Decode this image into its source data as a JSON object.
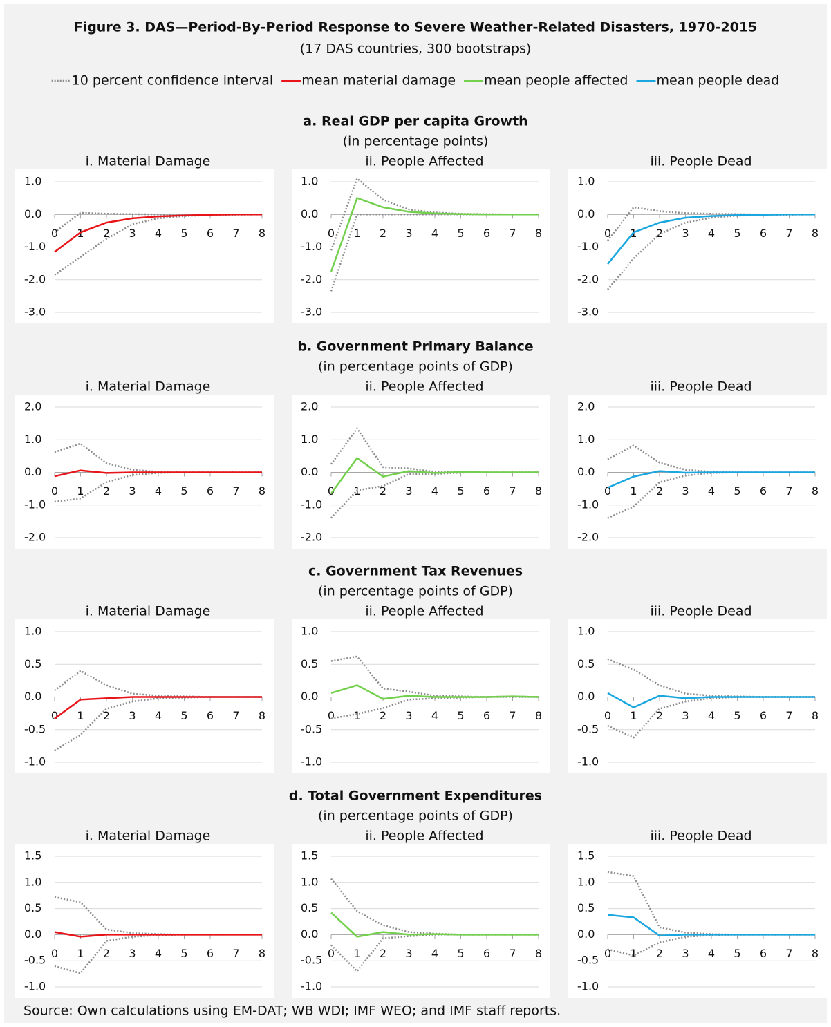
{
  "title": "Figure 3. DAS—Period-By-Period Response to Severe Weather-Related Disasters, 1970-2015",
  "subtitle": "(17 DAS countries, 300 bootstraps)",
  "legend": [
    {
      "label": "10 percent confidence interval",
      "color": "#8c8c8c",
      "dash": true
    },
    {
      "label": "mean material damage",
      "color": "#e8141a"
    },
    {
      "label": "mean people affected",
      "color": "#72d04c"
    },
    {
      "label": "mean people dead",
      "color": "#1aa7e0"
    }
  ],
  "sections": [
    {
      "title": "a. Real GDP per capita Growth",
      "subtitle": "(in percentage points)"
    },
    {
      "title": "b. Government Primary Balance",
      "subtitle": "(in percentage points of GDP)"
    },
    {
      "title": "c. Government Tax Revenues",
      "subtitle": "(in percentage points of GDP)"
    },
    {
      "title": "d. Total Government Expenditures",
      "subtitle": "(in percentage points of GDP)"
    }
  ],
  "source": "Source: Own calculations using EM-DAT; WB WDI; IMF WEO; and IMF staff reports.",
  "chart_data": [
    {
      "type": "line",
      "title": "i. Material Damage",
      "x": [
        0,
        1,
        2,
        3,
        4,
        5,
        6,
        7,
        8
      ],
      "color": "#e8141a",
      "ylim": [
        -3,
        1
      ],
      "yticks": [
        {
          "value": -3,
          "label": "-3.0"
        },
        {
          "value": -2,
          "label": "-2.0"
        },
        {
          "value": -1,
          "label": "-1.0"
        },
        {
          "value": 0,
          "label": "0.0"
        },
        {
          "value": 1,
          "label": "1.0"
        }
      ],
      "values": [
        -1.15,
        -0.55,
        -0.25,
        -0.12,
        -0.06,
        -0.03,
        -0.01,
        0,
        0
      ],
      "upper": [
        -0.55,
        0.05,
        0.02,
        0.01,
        0,
        0,
        0,
        0,
        0
      ],
      "lower": [
        -1.85,
        -1.3,
        -0.75,
        -0.3,
        -0.12,
        -0.05,
        -0.02,
        -0.01,
        0
      ]
    },
    {
      "type": "line",
      "title": "ii. People Affected",
      "x": [
        0,
        1,
        2,
        3,
        4,
        5,
        6,
        7,
        8
      ],
      "color": "#72d04c",
      "ylim": [
        -3,
        1
      ],
      "yticks": [
        {
          "value": -3,
          "label": "-3.0"
        },
        {
          "value": -2,
          "label": "-2.0"
        },
        {
          "value": -1,
          "label": "-1.0"
        },
        {
          "value": 0,
          "label": "0.0"
        },
        {
          "value": 1,
          "label": "1.0"
        }
      ],
      "values": [
        -1.75,
        0.5,
        0.22,
        0.08,
        0.03,
        0.01,
        0,
        0,
        0
      ],
      "upper": [
        -1.1,
        1.1,
        0.45,
        0.15,
        0.06,
        0.02,
        0.01,
        0,
        0
      ],
      "lower": [
        -2.35,
        0,
        0,
        0,
        0,
        0,
        0,
        0,
        0
      ]
    },
    {
      "type": "line",
      "title": "iii. People Dead",
      "x": [
        0,
        1,
        2,
        3,
        4,
        5,
        6,
        7,
        8
      ],
      "color": "#1aa7e0",
      "ylim": [
        -3,
        1
      ],
      "yticks": [
        {
          "value": -3,
          "label": "-3.0"
        },
        {
          "value": -2,
          "label": "-2.0"
        },
        {
          "value": -1,
          "label": "-1.0"
        },
        {
          "value": 0,
          "label": "0.0"
        },
        {
          "value": 1,
          "label": "1.0"
        }
      ],
      "values": [
        -1.52,
        -0.55,
        -0.25,
        -0.1,
        -0.05,
        -0.02,
        -0.01,
        0,
        0
      ],
      "upper": [
        -0.8,
        0.22,
        0.1,
        0.04,
        0.02,
        0.01,
        0,
        0,
        0
      ],
      "lower": [
        -2.3,
        -1.35,
        -0.6,
        -0.25,
        -0.1,
        -0.04,
        -0.02,
        -0.01,
        0
      ]
    },
    {
      "type": "line",
      "title": "i. Material Damage",
      "x": [
        0,
        1,
        2,
        3,
        4,
        5,
        6,
        7,
        8
      ],
      "color": "#e8141a",
      "ylim": [
        -2,
        2
      ],
      "yticks": [
        {
          "value": -2,
          "label": "-2.0"
        },
        {
          "value": -1,
          "label": "-1.0"
        },
        {
          "value": 0,
          "label": "0.0"
        },
        {
          "value": 1,
          "label": "1.0"
        },
        {
          "value": 2,
          "label": "2.0"
        }
      ],
      "values": [
        -0.12,
        0.06,
        -0.02,
        0,
        0,
        0,
        0,
        0,
        0
      ],
      "upper": [
        0.62,
        0.88,
        0.28,
        0.08,
        0.02,
        0,
        0,
        0,
        0
      ],
      "lower": [
        -0.9,
        -0.8,
        -0.3,
        -0.08,
        -0.02,
        0,
        0,
        0,
        0
      ]
    },
    {
      "type": "line",
      "title": "ii. People Affected",
      "x": [
        0,
        1,
        2,
        3,
        4,
        5,
        6,
        7,
        8
      ],
      "color": "#72d04c",
      "ylim": [
        -2,
        2
      ],
      "yticks": [
        {
          "value": -2,
          "label": "-2.0"
        },
        {
          "value": -1,
          "label": "-1.0"
        },
        {
          "value": 0,
          "label": "0.0"
        },
        {
          "value": 1,
          "label": "1.0"
        },
        {
          "value": 2,
          "label": "2.0"
        }
      ],
      "values": [
        -0.65,
        0.44,
        -0.13,
        0.04,
        -0.02,
        0.01,
        0,
        0,
        0
      ],
      "upper": [
        0.25,
        1.35,
        0.16,
        0.12,
        0.02,
        0.02,
        0,
        0,
        0
      ],
      "lower": [
        -1.4,
        -0.55,
        -0.42,
        -0.05,
        -0.05,
        -0.01,
        0,
        0,
        0
      ]
    },
    {
      "type": "line",
      "title": "iii. People Dead",
      "x": [
        0,
        1,
        2,
        3,
        4,
        5,
        6,
        7,
        8
      ],
      "color": "#1aa7e0",
      "ylim": [
        -2,
        2
      ],
      "yticks": [
        {
          "value": -2,
          "label": "-2.0"
        },
        {
          "value": -1,
          "label": "-1.0"
        },
        {
          "value": 0,
          "label": "0.0"
        },
        {
          "value": 1,
          "label": "1.0"
        },
        {
          "value": 2,
          "label": "2.0"
        }
      ],
      "values": [
        -0.47,
        -0.13,
        0.04,
        -0.01,
        0,
        0,
        0,
        0,
        0
      ],
      "upper": [
        0.4,
        0.82,
        0.3,
        0.08,
        0.02,
        0,
        0,
        0,
        0
      ],
      "lower": [
        -1.4,
        -1.05,
        -0.3,
        -0.1,
        -0.02,
        0,
        0,
        0,
        0
      ]
    },
    {
      "type": "line",
      "title": "i. Material Damage",
      "x": [
        0,
        1,
        2,
        3,
        4,
        5,
        6,
        7,
        8
      ],
      "color": "#e8141a",
      "ylim": [
        -1,
        1
      ],
      "yticks": [
        {
          "value": -1,
          "label": "-1.0"
        },
        -0.5,
        {
          "value": 0,
          "label": "0.0"
        },
        0.5,
        {
          "value": 1,
          "label": "1.0"
        }
      ],
      "values": [
        -0.33,
        -0.04,
        -0.02,
        0,
        0,
        0,
        0,
        0,
        0
      ],
      "upper": [
        0.1,
        0.4,
        0.18,
        0.05,
        0.02,
        0.01,
        0,
        0,
        0
      ],
      "lower": [
        -0.82,
        -0.58,
        -0.18,
        -0.07,
        -0.02,
        -0.01,
        0,
        0,
        0
      ]
    },
    {
      "type": "line",
      "title": "ii. People Affected",
      "x": [
        0,
        1,
        2,
        3,
        4,
        5,
        6,
        7,
        8
      ],
      "color": "#72d04c",
      "ylim": [
        -1,
        1
      ],
      "yticks": [
        {
          "value": -1,
          "label": "-1.0"
        },
        -0.5,
        {
          "value": 0,
          "label": "0.0"
        },
        0.5,
        {
          "value": 1,
          "label": "1.0"
        }
      ],
      "values": [
        0.06,
        0.18,
        -0.03,
        0.02,
        0,
        0,
        0,
        0.01,
        0
      ],
      "upper": [
        0.55,
        0.62,
        0.13,
        0.08,
        0.02,
        0.01,
        0,
        0.01,
        0
      ],
      "lower": [
        -0.33,
        -0.26,
        -0.17,
        -0.04,
        -0.02,
        -0.01,
        0,
        0,
        0
      ]
    },
    {
      "type": "line",
      "title": "iii. People Dead",
      "x": [
        0,
        1,
        2,
        3,
        4,
        5,
        6,
        7,
        8
      ],
      "color": "#1aa7e0",
      "ylim": [
        -1,
        1
      ],
      "yticks": [
        {
          "value": -1,
          "label": "-1.0"
        },
        -0.5,
        {
          "value": 0,
          "label": "0.0"
        },
        0.5,
        {
          "value": 1,
          "label": "1.0"
        }
      ],
      "values": [
        0.06,
        -0.16,
        0.02,
        -0.02,
        0,
        0,
        0,
        0,
        0
      ],
      "upper": [
        0.58,
        0.42,
        0.18,
        0.05,
        0.02,
        0.01,
        0,
        0,
        0
      ],
      "lower": [
        -0.44,
        -0.62,
        -0.18,
        -0.07,
        -0.02,
        0,
        0,
        0,
        0
      ]
    },
    {
      "type": "line",
      "title": "i. Material Damage",
      "x": [
        0,
        1,
        2,
        3,
        4,
        5,
        6,
        7,
        8
      ],
      "color": "#e8141a",
      "ylim": [
        -1,
        1.5
      ],
      "yticks": [
        {
          "value": -1,
          "label": "-1.0"
        },
        -0.5,
        {
          "value": 0,
          "label": "0.0"
        },
        0.5,
        {
          "value": 1,
          "label": "1.0"
        },
        1.5
      ],
      "values": [
        0.05,
        -0.04,
        0,
        0,
        0,
        0,
        0,
        0,
        0
      ],
      "upper": [
        0.72,
        0.62,
        0.1,
        0.03,
        0.01,
        0,
        0,
        0,
        0
      ],
      "lower": [
        -0.6,
        -0.74,
        -0.12,
        -0.04,
        -0.01,
        0,
        0,
        0,
        0
      ]
    },
    {
      "type": "line",
      "title": "ii. People Affected",
      "x": [
        0,
        1,
        2,
        3,
        4,
        5,
        6,
        7,
        8
      ],
      "color": "#72d04c",
      "ylim": [
        -1,
        1.5
      ],
      "yticks": [
        {
          "value": -1,
          "label": "-1.0"
        },
        -0.5,
        {
          "value": 0,
          "label": "0.0"
        },
        0.5,
        {
          "value": 1,
          "label": "1.0"
        },
        1.5
      ],
      "values": [
        0.42,
        -0.04,
        0.05,
        0,
        0.01,
        0,
        0,
        0,
        0
      ],
      "upper": [
        1.07,
        0.45,
        0.18,
        0.05,
        0.02,
        0,
        0,
        0,
        0
      ],
      "lower": [
        -0.2,
        -0.7,
        -0.07,
        -0.03,
        0,
        0,
        0,
        0,
        0
      ]
    },
    {
      "type": "line",
      "title": "iii. People Dead",
      "x": [
        0,
        1,
        2,
        3,
        4,
        5,
        6,
        7,
        8
      ],
      "color": "#1aa7e0",
      "ylim": [
        -1,
        1.5
      ],
      "yticks": [
        {
          "value": -1,
          "label": "-1.0"
        },
        -0.5,
        {
          "value": 0,
          "label": "0.0"
        },
        0.5,
        {
          "value": 1,
          "label": "1.0"
        },
        1.5
      ],
      "values": [
        0.38,
        0.33,
        -0.02,
        0,
        0,
        0,
        0,
        0,
        0
      ],
      "upper": [
        1.2,
        1.12,
        0.14,
        0.04,
        0.01,
        0,
        0,
        0,
        0
      ],
      "lower": [
        -0.28,
        -0.4,
        -0.15,
        -0.04,
        -0.01,
        0,
        0,
        0,
        0
      ]
    }
  ]
}
